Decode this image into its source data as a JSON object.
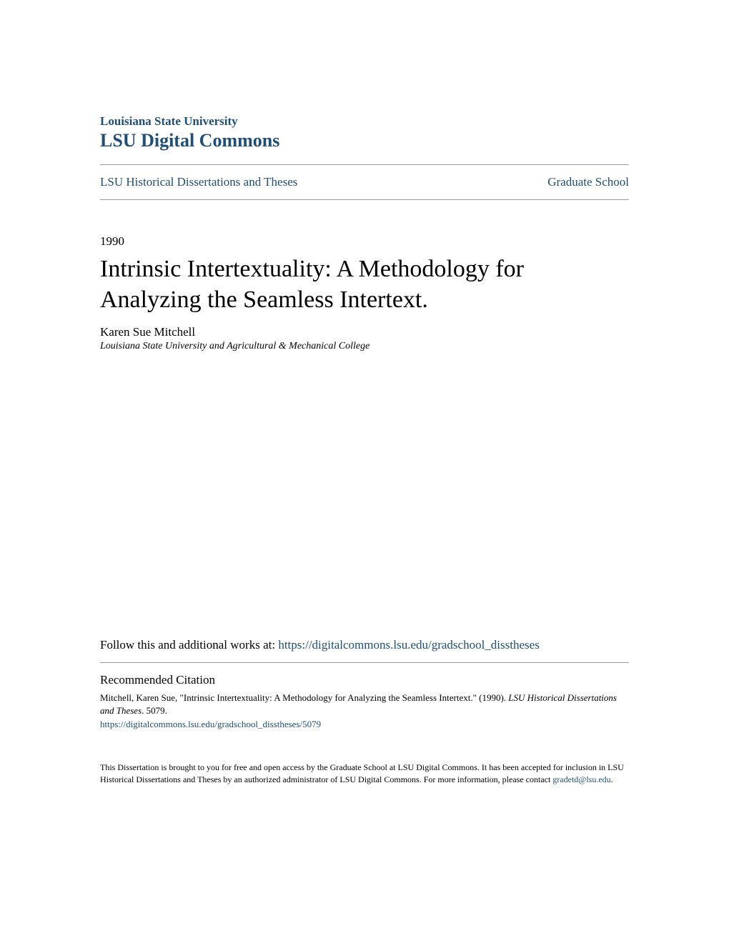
{
  "header": {
    "university": "Louisiana State University",
    "repository": "LSU Digital Commons"
  },
  "nav": {
    "left": "LSU Historical Dissertations and Theses",
    "right": "Graduate School"
  },
  "document": {
    "year": "1990",
    "title": "Intrinsic Intertextuality: A Methodology for Analyzing the Seamless Intertext.",
    "author": "Karen Sue Mitchell",
    "affiliation": "Louisiana State University and Agricultural & Mechanical College"
  },
  "follow": {
    "prefix": "Follow this and additional works at: ",
    "url": "https://digitalcommons.lsu.edu/gradschool_disstheses"
  },
  "citation": {
    "heading": "Recommended Citation",
    "text_part1": "Mitchell, Karen Sue, \"Intrinsic Intertextuality: A Methodology for Analyzing the Seamless Intertext.\" (1990). ",
    "journal": "LSU Historical Dissertations and Theses",
    "text_part2": ". 5079.",
    "url": "https://digitalcommons.lsu.edu/gradschool_disstheses/5079"
  },
  "footer": {
    "text": "This Dissertation is brought to you for free and open access by the Graduate School at LSU Digital Commons. It has been accepted for inclusion in LSU Historical Dissertations and Theses by an authorized administrator of LSU Digital Commons. For more information, please contact ",
    "email": "gradetd@lsu.edu",
    "period": "."
  },
  "colors": {
    "link": "#1f4e79",
    "text": "#000000",
    "divider": "#999999",
    "background": "#ffffff"
  }
}
